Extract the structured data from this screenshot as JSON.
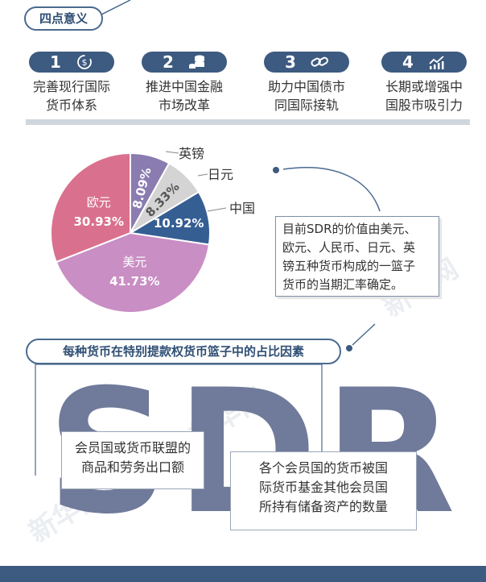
{
  "header": {
    "title": "四点意义"
  },
  "meanings": [
    {
      "num": "1",
      "icon": "currency-cycle-icon",
      "line1": "完善现行国际",
      "line2": "货币体系"
    },
    {
      "num": "2",
      "icon": "coin-stack-icon",
      "line1": "推进中国金融",
      "line2": "市场改革"
    },
    {
      "num": "3",
      "icon": "chain-link-icon",
      "line1": "助力中国债市",
      "line2": "同国际接轨"
    },
    {
      "num": "4",
      "icon": "rising-chart-icon",
      "line1": "长期或增强中",
      "line2": "国股市吸引力"
    }
  ],
  "chart_data": {
    "type": "pie",
    "slices": [
      {
        "label": "美元",
        "value": 41.73,
        "value_label": "41.73%",
        "color": "#c98ec4"
      },
      {
        "label": "欧元",
        "value": 30.93,
        "value_label": "30.93%",
        "color": "#d9708e"
      },
      {
        "label": "英镑",
        "value": 8.09,
        "value_label": "8.09%",
        "color": "#8a7bb0"
      },
      {
        "label": "日元",
        "value": 8.33,
        "value_label": "8.33%",
        "color": "#d4d4d4"
      },
      {
        "label": "中国",
        "value": 10.92,
        "value_label": "10.92%",
        "color": "#355e93"
      }
    ]
  },
  "note": {
    "lines": [
      "目前SDR的价值由美元、",
      "欧元、人民币、日元、英",
      "镑五种货币构成的一篮子",
      "货币的当期汇率确定。"
    ]
  },
  "factors": {
    "title": "每种货币在特别提款权货币篮子中的占比因素",
    "big_text": "SDR",
    "factor1": {
      "line1": "会员国或货币联盟的",
      "line2": "商品和劳务出口额"
    },
    "factor2": {
      "line1": "各个会员国的货币被国",
      "line2": "际货币基金其他会员国",
      "line3": "所持有储备资产的数量"
    }
  },
  "colors": {
    "primary": "#3d5a80",
    "divider": "#cfd6de",
    "sdr_text": "#707a9a"
  }
}
